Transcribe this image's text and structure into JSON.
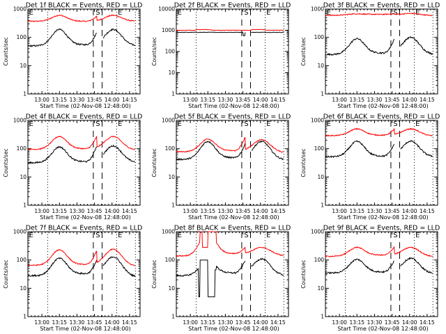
{
  "chart_data": {
    "type": "line",
    "layout": "3x3 grid",
    "shared": {
      "xlabel": "Start Time (02-Nov-08 12:48:00)",
      "ylabel": "Counts/sec",
      "x_unit": "minutes after 12:48:00",
      "xlim": [
        0,
        96
      ],
      "x_tick_labels": [
        "13:00",
        "13:15",
        "13:30",
        "13:45",
        "14:00",
        "14:15"
      ],
      "x_tick_values": [
        12,
        27,
        42,
        57,
        72,
        87
      ],
      "y_scale": "log",
      "dotted_lines_x": [
        17,
        76,
        92
      ],
      "dashed_lines_x": [
        56,
        63.5
      ],
      "markers": [
        {
          "label": "E",
          "x": 1
        },
        {
          "label": "S",
          "x": 58
        },
        {
          "label": "E",
          "x": 77
        }
      ],
      "series_colors": {
        "events": "#000000",
        "lld": "#ff0000"
      },
      "legend": "BLACK = Events, RED = LLD",
      "data_gap_x": [
        59,
        64
      ]
    },
    "panels": [
      {
        "title": "Det 1f BLACK = Events, RED = LLD",
        "ylim": [
          1,
          1000
        ],
        "y_tick_labels": [
          "1",
          "10",
          "100",
          "1000"
        ],
        "events": {
          "base": 50,
          "peak1": 190,
          "mid": 55,
          "peak2": 190,
          "end": 50,
          "spike": 150
        },
        "lld": {
          "base": 370,
          "peak1": 600,
          "mid": 370,
          "peak2": 600,
          "end": 370,
          "spike": 560
        }
      },
      {
        "title": "Det 2f BLACK = Events, RED = LLD",
        "ylim": [
          1,
          10000
        ],
        "y_tick_labels": [
          "1",
          "10",
          "100",
          "1000",
          "10000"
        ],
        "events": {
          "flat": 800,
          "dip": 550
        },
        "lld": {
          "flat": 1000,
          "bump": 1150
        }
      },
      {
        "title": "Det 3f BLACK = Events, RED = LLD",
        "ylim": [
          1,
          1000
        ],
        "y_tick_labels": [
          "1",
          "10",
          "100",
          "1000"
        ],
        "events": {
          "base": 25,
          "peak1": 90,
          "mid": 28,
          "peak2": 100,
          "end": 25,
          "spike": 90
        },
        "lld": {
          "base": 600,
          "peak1": 680,
          "mid": 650,
          "peak2": 700,
          "end": 580,
          "spike": 700
        }
      },
      {
        "title": "Det 4f BLACK = Events, RED = LLD",
        "ylim": [
          1,
          1000
        ],
        "y_tick_labels": [
          "1",
          "10",
          "100",
          "1000"
        ],
        "events": {
          "base": 32,
          "peak1": 115,
          "mid": 35,
          "peak2": 125,
          "end": 33,
          "spike": 130
        },
        "lld": {
          "base": 95,
          "peak1": 270,
          "mid": 100,
          "peak2": 270,
          "end": 90,
          "spike": 280
        }
      },
      {
        "title": "Det 5f BLACK = Events, RED = LLD",
        "ylim": [
          1,
          1000
        ],
        "y_tick_labels": [
          "1",
          "10",
          "100",
          "1000"
        ],
        "events": {
          "base": 42,
          "peak1": 180,
          "mid": 48,
          "peak2": 180,
          "end": 40,
          "spike": 150
        },
        "lld": {
          "base": 78,
          "peak1": 220,
          "mid": 85,
          "peak2": 210,
          "end": 72,
          "spike": 260
        }
      },
      {
        "title": "Det 6f BLACK = Events, RED = LLD",
        "ylim": [
          1,
          1000
        ],
        "y_tick_labels": [
          "1",
          "10",
          "100",
          "1000"
        ],
        "events": {
          "base": 52,
          "peak1": 180,
          "mid": 55,
          "peak2": 185,
          "end": 52,
          "spike": 150
        },
        "lld": {
          "base": 290,
          "peak1": 500,
          "mid": 300,
          "peak2": 500,
          "end": 280,
          "spike": 500
        }
      },
      {
        "title": "Det 7f BLACK = Events, RED = LLD",
        "ylim": [
          1,
          1000
        ],
        "y_tick_labels": [
          "1",
          "10",
          "100",
          "1000"
        ],
        "events": {
          "base": 28,
          "peak1": 115,
          "mid": 33,
          "peak2": 130,
          "end": 25,
          "spike": 100
        },
        "lld": {
          "base": 65,
          "peak1": 230,
          "mid": 70,
          "peak2": 240,
          "end": 60,
          "spike": 220
        }
      },
      {
        "title": "Det 8f BLACK = Events, RED = LLD",
        "ylim": [
          1,
          1000
        ],
        "y_tick_labels": [
          "1",
          "10",
          "100",
          "1000"
        ],
        "events": {
          "base": 28,
          "peak1": 100,
          "mid": 35,
          "peak2": 110,
          "end": 28,
          "spike": 100,
          "anomaly": true
        },
        "lld": {
          "base": 140,
          "peak1": 1000,
          "mid": 170,
          "peak2": 280,
          "end": 140,
          "spike": 290,
          "anomaly": true
        }
      },
      {
        "title": "Det 9f BLACK = Events, RED = LLD",
        "ylim": [
          1,
          1000
        ],
        "y_tick_labels": [
          "1",
          "10",
          "100",
          "1000"
        ],
        "events": {
          "base": 35,
          "peak1": 105,
          "mid": 38,
          "peak2": 115,
          "end": 33,
          "spike": 100
        },
        "lld": {
          "base": 135,
          "peak1": 280,
          "mid": 150,
          "peak2": 280,
          "end": 130,
          "spike": 300
        }
      }
    ]
  }
}
